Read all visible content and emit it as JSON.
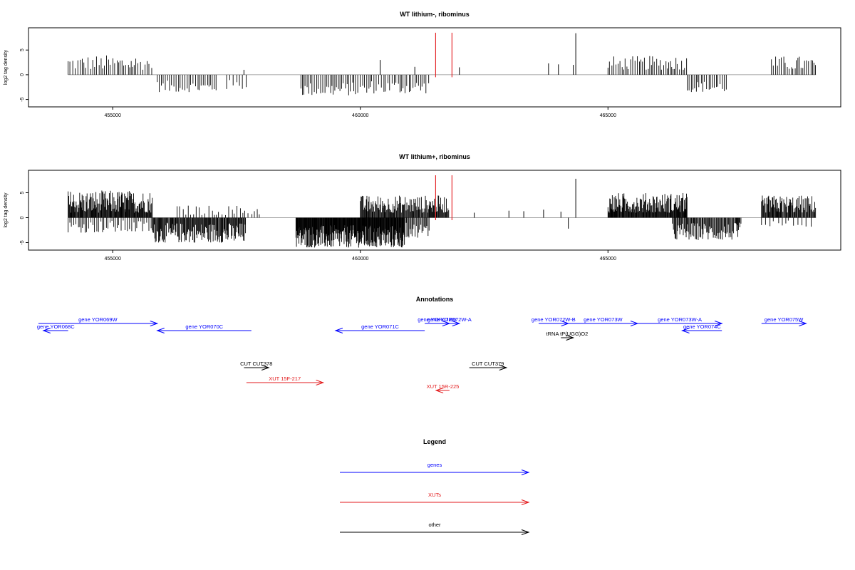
{
  "chart_data": [
    {
      "type": "bar",
      "title": "WT lithium-, ribominus",
      "ylabel": "log2 tag density",
      "xlim": [
        453300,
        469700
      ],
      "ylim": [
        -6.5,
        9.5
      ],
      "x_ticks": [
        455000,
        460000,
        465000
      ],
      "y_ticks": [
        -5,
        0,
        5
      ],
      "grid": false,
      "highlight_color": "#e31a1c",
      "bar_color": "#000000",
      "highlights": [
        {
          "x": 461520,
          "value": 8.5
        },
        {
          "x": 461850,
          "value": 8.5
        }
      ],
      "segments": [
        {
          "from": 454100,
          "to": 455800,
          "min": 1.0,
          "max": 4.0,
          "step": 42
        },
        {
          "from": 455900,
          "to": 457100,
          "min": -3.5,
          "max": -1.2,
          "step": 38
        },
        {
          "from": 457300,
          "to": 457700,
          "min": -3.0,
          "max": -1.0,
          "step": 60
        },
        {
          "from": 458800,
          "to": 460200,
          "min": -4.2,
          "max": -1.5,
          "step": 36
        },
        {
          "from": 460200,
          "to": 461400,
          "min": -3.8,
          "max": -1.0,
          "step": 40
        },
        {
          "from": 465000,
          "to": 465900,
          "min": 1.0,
          "max": 3.8,
          "step": 38
        },
        {
          "from": 465900,
          "to": 466600,
          "min": 1.0,
          "max": 4.0,
          "step": 36
        },
        {
          "from": 466600,
          "to": 467400,
          "min": -3.5,
          "max": -1.2,
          "step": 38
        },
        {
          "from": 468300,
          "to": 469200,
          "min": 1.0,
          "max": 3.8,
          "step": 38
        }
      ],
      "singles": [
        {
          "x": 457650,
          "value": 1.0
        },
        {
          "x": 460400,
          "value": 3.0
        },
        {
          "x": 461100,
          "value": 1.6
        },
        {
          "x": 462000,
          "value": 1.5
        },
        {
          "x": 463800,
          "value": 2.3
        },
        {
          "x": 464000,
          "value": 2.1
        },
        {
          "x": 464350,
          "value": 8.4
        },
        {
          "x": 464300,
          "value": 2.0
        }
      ]
    },
    {
      "type": "bar",
      "title": "WT lithium+, ribominus",
      "ylabel": "log2 tag density",
      "xlim": [
        453300,
        469700
      ],
      "ylim": [
        -6.5,
        9.5
      ],
      "x_ticks": [
        455000,
        460000,
        465000
      ],
      "y_ticks": [
        -5,
        0,
        5
      ],
      "grid": false,
      "highlight_color": "#e31a1c",
      "bar_color": "#000000",
      "highlights": [
        {
          "x": 461520,
          "value": 8.5
        },
        {
          "x": 461850,
          "value": 8.5
        }
      ],
      "segments": [
        {
          "from": 454100,
          "to": 455800,
          "min": 1.0,
          "max": 5.5,
          "step": 12
        },
        {
          "from": 454100,
          "to": 455800,
          "min": -3.0,
          "max": -0.5,
          "step": 40
        },
        {
          "from": 455800,
          "to": 457700,
          "min": -5.0,
          "max": -1.0,
          "step": 14
        },
        {
          "from": 456300,
          "to": 458000,
          "min": 0.5,
          "max": 2.5,
          "step": 60
        },
        {
          "from": 458700,
          "to": 460900,
          "min": -6.0,
          "max": -1.5,
          "step": 9
        },
        {
          "from": 460000,
          "to": 461800,
          "min": 1.0,
          "max": 4.5,
          "step": 14
        },
        {
          "from": 460900,
          "to": 461400,
          "min": -4.0,
          "max": -1.0,
          "step": 20
        },
        {
          "from": 465000,
          "to": 466600,
          "min": 1.0,
          "max": 5.0,
          "step": 11
        },
        {
          "from": 466300,
          "to": 467700,
          "min": -4.5,
          "max": -1.0,
          "step": 16
        },
        {
          "from": 468100,
          "to": 469200,
          "min": 1.0,
          "max": 4.5,
          "step": 14
        },
        {
          "from": 468100,
          "to": 469200,
          "min": -2.0,
          "max": -0.5,
          "step": 80
        }
      ],
      "singles": [
        {
          "x": 462300,
          "value": 1.0
        },
        {
          "x": 463000,
          "value": 1.4
        },
        {
          "x": 463300,
          "value": 1.3
        },
        {
          "x": 463700,
          "value": 1.6
        },
        {
          "x": 464050,
          "value": 1.2
        },
        {
          "x": 464200,
          "value": -2.2
        },
        {
          "x": 464350,
          "value": 7.8
        }
      ]
    }
  ],
  "annotations": {
    "title": "Annotations",
    "items": [
      {
        "label": "gene YOR069W",
        "from": 453500,
        "to": 455900,
        "color": "#0000ff",
        "row": 0,
        "dir": "right"
      },
      {
        "label": "gene YOR068C",
        "from": 453600,
        "to": 454100,
        "color": "#0000ff",
        "row": 1,
        "dir": "left"
      },
      {
        "label": "gene YOR070C",
        "from": 455900,
        "to": 457800,
        "color": "#0000ff",
        "row": 1,
        "dir": "left"
      },
      {
        "label": "gene YOR071C",
        "from": 459500,
        "to": 461300,
        "color": "#0000ff",
        "row": 1,
        "dir": "left"
      },
      {
        "label": "gene YOR072W",
        "from": 461300,
        "to": 461800,
        "color": "#0000ff",
        "row": 0,
        "dir": "right"
      },
      {
        "label": "gene YOR072W-A",
        "from": 461600,
        "to": 462000,
        "color": "#0000ff",
        "row": 0,
        "dir": "right"
      },
      {
        "label": "gene YOR072W-B",
        "from": 463600,
        "to": 464200,
        "color": "#0000ff",
        "row": 0,
        "dir": "right"
      },
      {
        "label": "gene YOR073W",
        "from": 464200,
        "to": 465600,
        "color": "#0000ff",
        "row": 0,
        "dir": "right"
      },
      {
        "label": "gene YOR073W-A",
        "from": 465600,
        "to": 467300,
        "color": "#0000ff",
        "row": 0,
        "dir": "right"
      },
      {
        "label": "gene YOR074C",
        "from": 466500,
        "to": 467300,
        "color": "#0000ff",
        "row": 1,
        "dir": "left"
      },
      {
        "label": "gene YOR075W",
        "from": 468100,
        "to": 469000,
        "color": "#0000ff",
        "row": 0,
        "dir": "right"
      },
      {
        "label": "tRNA tP(UGG)O2",
        "from": 464050,
        "to": 464300,
        "color": "#000000",
        "row": 2,
        "dir": "right"
      },
      {
        "label": "CUT CUT378",
        "from": 457650,
        "to": 458150,
        "color": "#000000",
        "row": 4,
        "dir": "right"
      },
      {
        "label": "CUT CUT379",
        "from": 462200,
        "to": 462950,
        "color": "#000000",
        "row": 4,
        "dir": "right"
      },
      {
        "label": "XUT 15F-217",
        "from": 457700,
        "to": 459250,
        "color": "#e31a1c",
        "row": 5,
        "dir": "right"
      },
      {
        "label": "XUT 15R-225",
        "from": 461530,
        "to": 461800,
        "color": "#e31a1c",
        "row": 6,
        "dir": "left"
      }
    ]
  },
  "legend": {
    "title": "Legend",
    "items": [
      {
        "label": "genes",
        "color": "#0000ff"
      },
      {
        "label": "XUTs",
        "color": "#e31a1c"
      },
      {
        "label": "other",
        "color": "#000000"
      }
    ]
  }
}
